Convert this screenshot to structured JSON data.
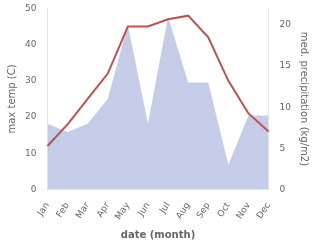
{
  "chart_data": {
    "type": "line",
    "categories": [
      "Jan",
      "Feb",
      "Mar",
      "Apr",
      "May",
      "Jun",
      "Jul",
      "Aug",
      "Sep",
      "Oct",
      "Nov",
      "Dec"
    ],
    "xlabel": "date (month)",
    "ylabel": "max temp (C)",
    "y2label": "med. precipitation (kg/m2)",
    "series": [
      {
        "type": "area",
        "color": "#c5cce8",
        "axis": "y2",
        "values": [
          8,
          7,
          8,
          11,
          20,
          8,
          21,
          13,
          13,
          3,
          9,
          9
        ]
      },
      {
        "type": "line",
        "color": "#c0504d",
        "values": [
          12,
          18,
          25,
          32,
          45,
          45,
          47,
          48,
          42,
          30,
          21,
          16
        ]
      }
    ],
    "ylim": [
      0,
      50
    ],
    "yticks": [
      0,
      10,
      20,
      30,
      40,
      50
    ],
    "y2lim": [
      0,
      22
    ],
    "y2ticks": [
      0,
      5,
      10,
      15,
      20
    ],
    "grid": false
  }
}
